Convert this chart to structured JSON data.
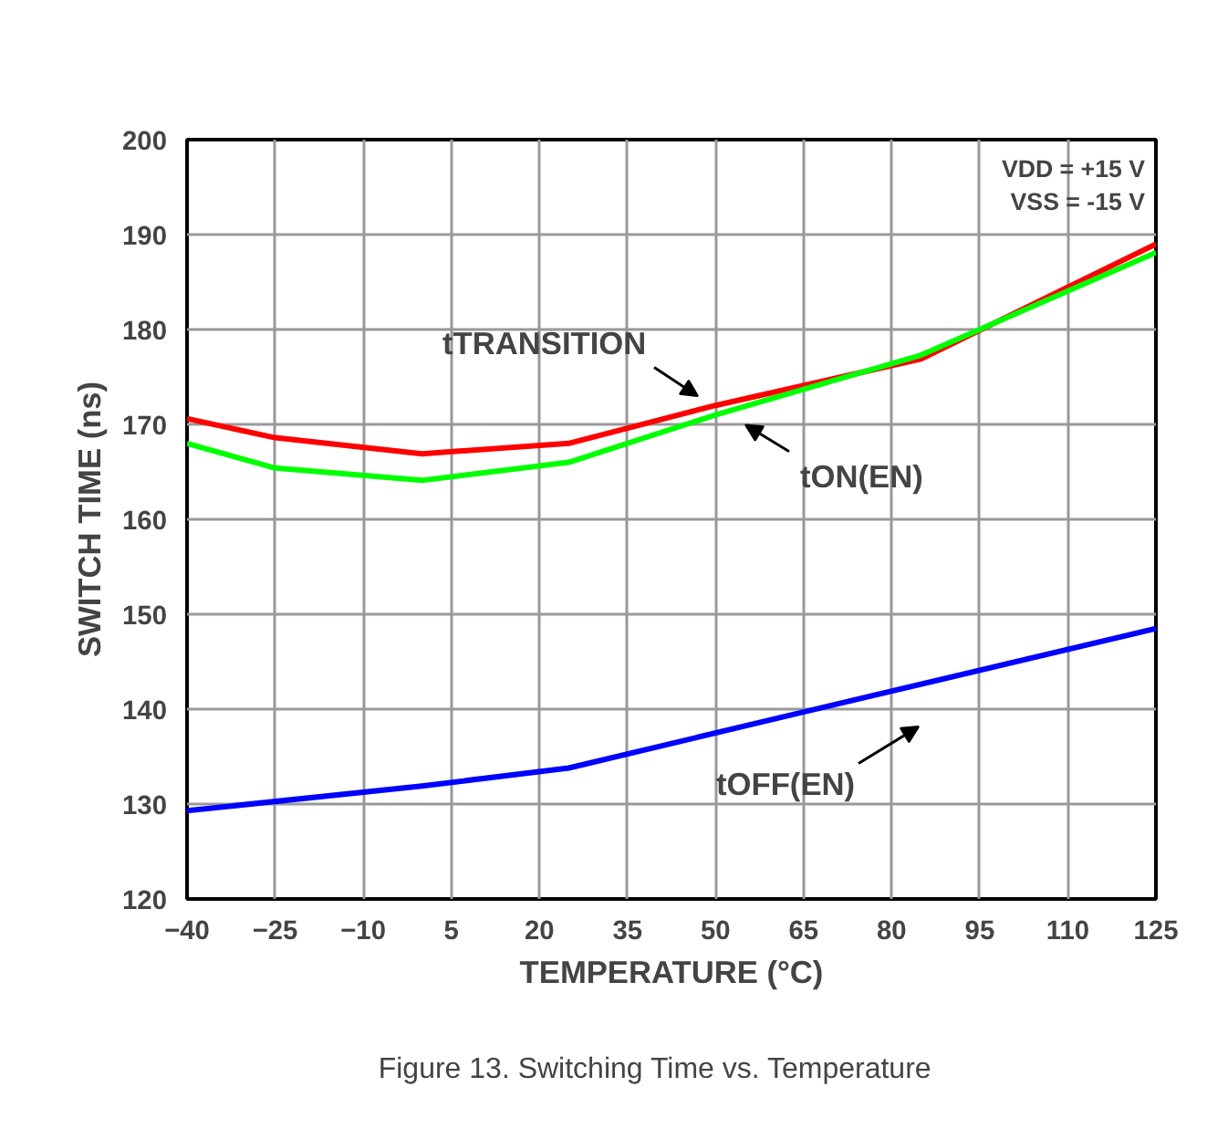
{
  "chart_data": {
    "type": "line",
    "xlabel": "TEMPERATURE (°C)",
    "ylabel": "SWITCH TIME (ns)",
    "x": [
      -40,
      -25,
      0,
      25,
      50,
      85,
      125
    ],
    "series": [
      {
        "color": "#ff0000",
        "values": [
          170.6,
          168.6,
          166.9,
          168,
          172,
          176.9,
          189
        ]
      },
      {
        "color": "#00ff00",
        "values": [
          168,
          165.4,
          164.1,
          166,
          171,
          177.3,
          188.1
        ]
      },
      {
        "color": "#0000ff",
        "x": [
          -40,
          0,
          25,
          65,
          125
        ],
        "values": [
          129.3,
          131.9,
          133.8,
          139.7,
          148.5
        ]
      }
    ],
    "xlim": [
      -40,
      125
    ],
    "xticks": [
      -40,
      -25,
      -10,
      5,
      20,
      35,
      50,
      65,
      80,
      95,
      110,
      125
    ],
    "ylim": [
      120,
      200
    ],
    "yticks": [
      120,
      130,
      140,
      150,
      160,
      170,
      180,
      190,
      200
    ],
    "grid": true,
    "annotations": [
      "tTRANSITION",
      "tON(EN)",
      "tOFF(EN)",
      "VDD = +15 V",
      "VSS = -15 V",
      "Figure 13.     Switching Time vs. Temperature"
    ]
  }
}
